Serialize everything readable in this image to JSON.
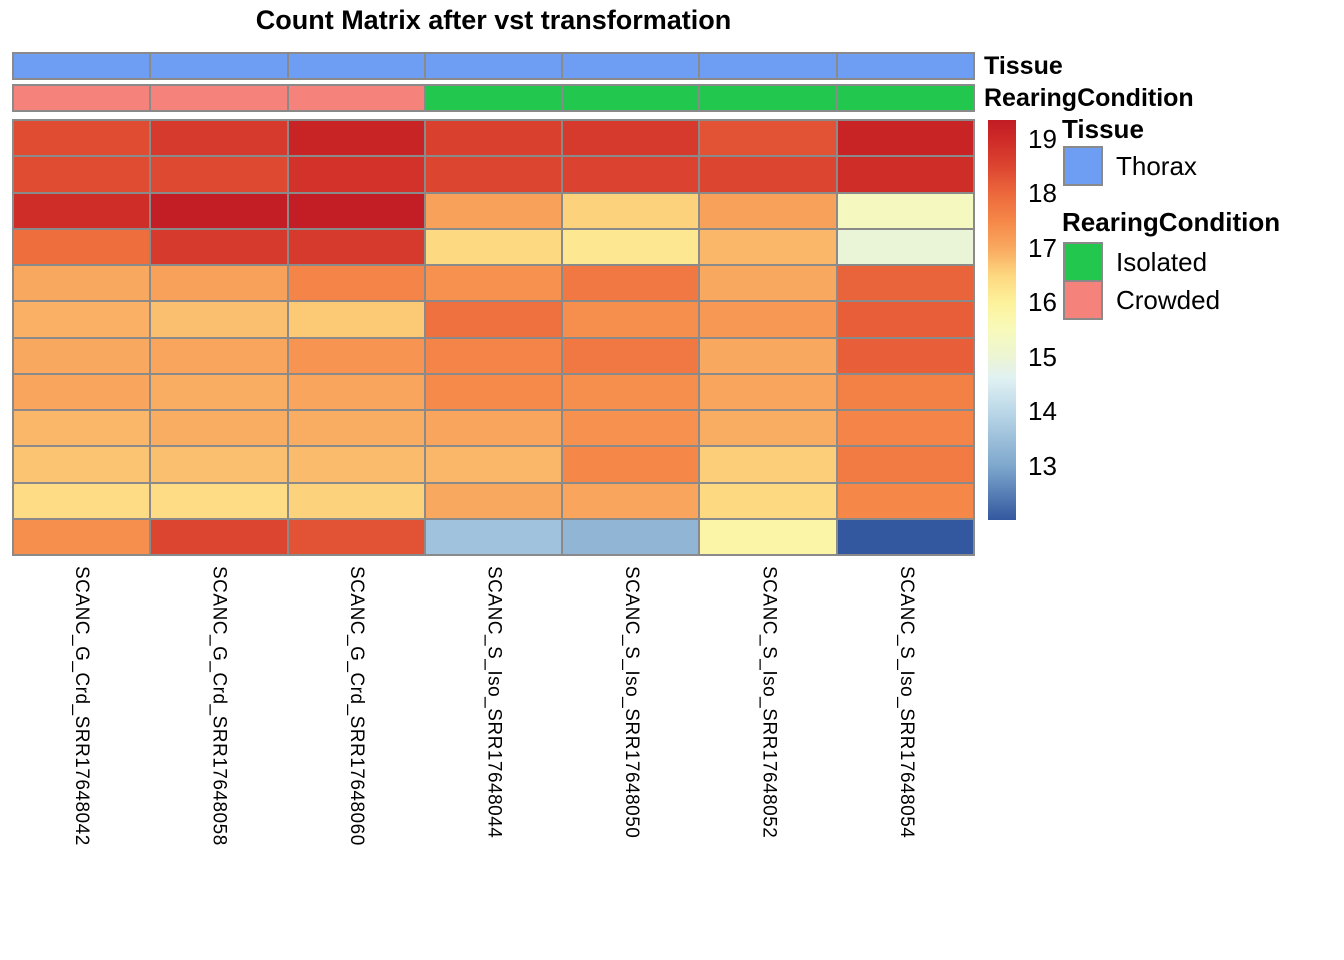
{
  "title": "Count Matrix after vst transformation",
  "annotation_side_labels": {
    "tissue": "Tissue",
    "rearing": "RearingCondition"
  },
  "legend": {
    "tissue_title": "Tissue",
    "thorax_label": "Thorax",
    "rearing_title": "RearingCondition",
    "isolated_label": "Isolated",
    "crowded_label": "Crowded"
  },
  "colors": {
    "grid_border": "#8a8a8a",
    "thorax": "#6d9ef3",
    "isolated": "#22c74e",
    "crowded": "#f5837b"
  },
  "chart_data": {
    "type": "heatmap",
    "title": "Count Matrix after vst transformation",
    "columns": [
      "SCANC_G_Crd_SRR17648042",
      "SCANC_G_Crd_SRR17648058",
      "SCANC_G_Crd_SRR17648060",
      "SCANC_S_Iso_SRR17648044",
      "SCANC_S_Iso_SRR17648050",
      "SCANC_S_Iso_SRR17648052",
      "SCANC_S_Iso_SRR17648054"
    ],
    "n_rows": 12,
    "row_labels_shown": false,
    "values": [
      [
        18.4,
        18.7,
        19.15,
        18.6,
        18.7,
        18.3,
        19.15
      ],
      [
        18.4,
        18.45,
        18.85,
        18.5,
        18.55,
        18.5,
        18.95
      ],
      [
        18.95,
        19.3,
        19.3,
        17.1,
        16.55,
        17.1,
        15.4
      ],
      [
        17.9,
        18.7,
        18.7,
        16.45,
        16.2,
        16.85,
        14.95
      ],
      [
        17.0,
        17.1,
        17.55,
        17.35,
        17.75,
        17.0,
        18.05
      ],
      [
        16.9,
        16.75,
        16.65,
        17.85,
        17.4,
        17.25,
        18.15
      ],
      [
        17.0,
        17.05,
        17.3,
        17.55,
        17.75,
        17.0,
        18.15
      ],
      [
        17.05,
        16.95,
        17.05,
        17.45,
        17.4,
        17.05,
        17.6
      ],
      [
        16.85,
        16.95,
        16.95,
        17.05,
        17.35,
        16.95,
        17.55
      ],
      [
        16.7,
        16.75,
        16.8,
        16.85,
        17.5,
        16.6,
        17.7
      ],
      [
        16.4,
        16.4,
        16.55,
        17.0,
        17.05,
        16.45,
        17.5
      ],
      [
        17.4,
        18.5,
        18.3,
        13.55,
        13.3,
        15.8,
        12.0
      ]
    ],
    "column_annotations": {
      "Tissue": [
        "Thorax",
        "Thorax",
        "Thorax",
        "Thorax",
        "Thorax",
        "Thorax",
        "Thorax"
      ],
      "RearingCondition": [
        "Crowded",
        "Crowded",
        "Crowded",
        "Isolated",
        "Isolated",
        "Isolated",
        "Isolated"
      ]
    },
    "annotation_colors": {
      "Thorax": "#6d9ef3",
      "Isolated": "#22c74e",
      "Crowded": "#f5837b"
    },
    "color_scale": {
      "min": 12.0,
      "max": 19.35,
      "ticks": [
        19,
        18,
        17,
        16,
        15,
        14,
        13
      ],
      "stops": [
        {
          "v": 12.0,
          "c": "#33589f"
        },
        {
          "v": 13.0,
          "c": "#7fa8cd"
        },
        {
          "v": 14.0,
          "c": "#bbd8e8"
        },
        {
          "v": 14.6,
          "c": "#e0f1f2"
        },
        {
          "v": 15.0,
          "c": "#ecf5d3"
        },
        {
          "v": 15.5,
          "c": "#f8faba"
        },
        {
          "v": 16.0,
          "c": "#fdf29b"
        },
        {
          "v": 16.5,
          "c": "#fdd77f"
        },
        {
          "v": 17.0,
          "c": "#f9a85f"
        },
        {
          "v": 17.5,
          "c": "#f58748"
        },
        {
          "v": 18.0,
          "c": "#ec683c"
        },
        {
          "v": 18.5,
          "c": "#dc4530"
        },
        {
          "v": 19.0,
          "c": "#ce2a27"
        },
        {
          "v": 19.35,
          "c": "#c11c25"
        }
      ],
      "legend_position": "right"
    }
  }
}
